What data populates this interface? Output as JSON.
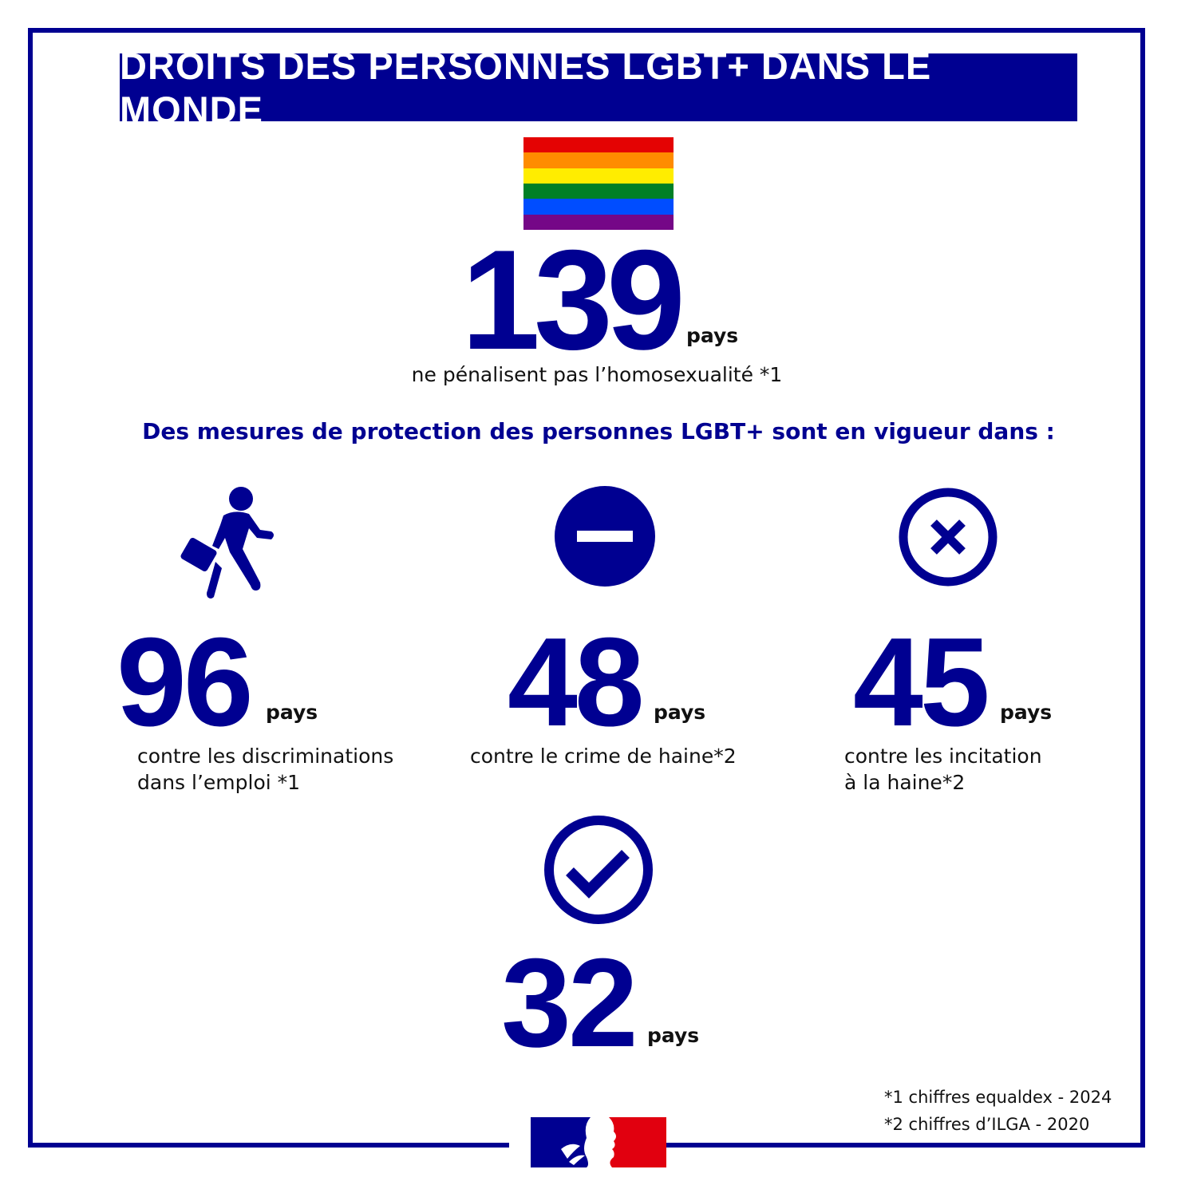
{
  "title": "DROITS DES PERSONNES LGBT+ DANS LE MONDE",
  "flag_colors": [
    "#e40303",
    "#ff8c00",
    "#ffed00",
    "#008026",
    "#004dff",
    "#750787"
  ],
  "accent_color": "#000091",
  "headline": {
    "number": "139",
    "unit": "pays",
    "caption": "ne pénalisent pas l’homosexualité *1"
  },
  "subheading": "Des mesures de protection des personnes LGBT+ sont en vigueur dans :",
  "stats": [
    {
      "icon": "walking-person-briefcase-icon",
      "number": "96",
      "unit": "pays",
      "caption_line1": "contre les discriminations",
      "caption_line2": "dans l’emploi *1"
    },
    {
      "icon": "minus-circle-icon",
      "number": "48",
      "unit": "pays",
      "caption_line1": "contre le crime de haine*2"
    },
    {
      "icon": "x-circle-icon",
      "number": "45",
      "unit": "pays",
      "caption_line1": "contre les incitation",
      "caption_line2": "à la haine*2"
    },
    {
      "icon": "check-circle-icon",
      "number": "32",
      "unit": "pays"
    }
  ],
  "footnotes": [
    "*1 chiffres equaldex - 2024",
    "*2 chiffres d’ILGA - 2020"
  ],
  "logo": {
    "name": "Marianne République Française logo",
    "colors": [
      "#000091",
      "#e1000f"
    ]
  }
}
